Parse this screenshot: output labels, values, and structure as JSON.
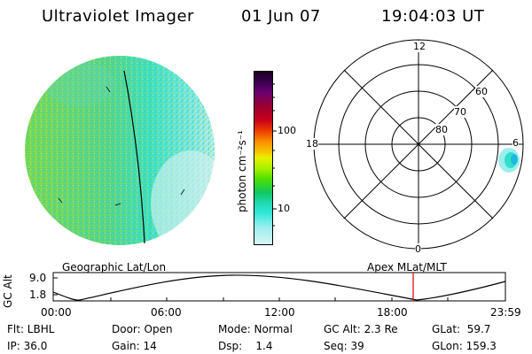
{
  "header": {
    "instrument": "Ultraviolet Imager",
    "date": "01 Jun 07",
    "time": "19:04:03 UT"
  },
  "colorbar": {
    "label": "photon cm⁻²s⁻¹",
    "ticks": [
      "100",
      "10"
    ],
    "colors": [
      "#1a0022",
      "#3a0050",
      "#6a0070",
      "#9a0030",
      "#c8001c",
      "#ec3a00",
      "#f88a00",
      "#f8c000",
      "#e8f000",
      "#a8f000",
      "#50e000",
      "#10c860",
      "#20d8b0",
      "#30e8d8",
      "#9ceeee",
      "#d8f4f4"
    ]
  },
  "polar_plot": {
    "labels": {
      "top": "12",
      "left": "18",
      "right": "6",
      "bottom": "0"
    },
    "ring_labels": [
      "60",
      "70",
      "80"
    ]
  },
  "timeline": {
    "left_title": "Geographic Lat/Lon",
    "right_title": "Apex MLat/MLT",
    "y_axis_label": "GC Alt",
    "y_ticks": [
      "9.0",
      "1.8"
    ],
    "x_ticks": [
      "00:00",
      "06:00",
      "12:00",
      "18:00",
      "23:59"
    ],
    "marker_time": "19:04"
  },
  "footer": {
    "filter": "Flt: LBHL",
    "door": "Door: Open",
    "mode": "Mode: Normal",
    "gc_alt": "GC Alt: 2.3 Re",
    "glat": "GLat:  59.7",
    "ip": "IP: 36.0",
    "gain": "Gain: 14",
    "dsp": "Dsp:    1.4",
    "seq": "Seq: 39",
    "glon": "GLon: 159.3"
  }
}
